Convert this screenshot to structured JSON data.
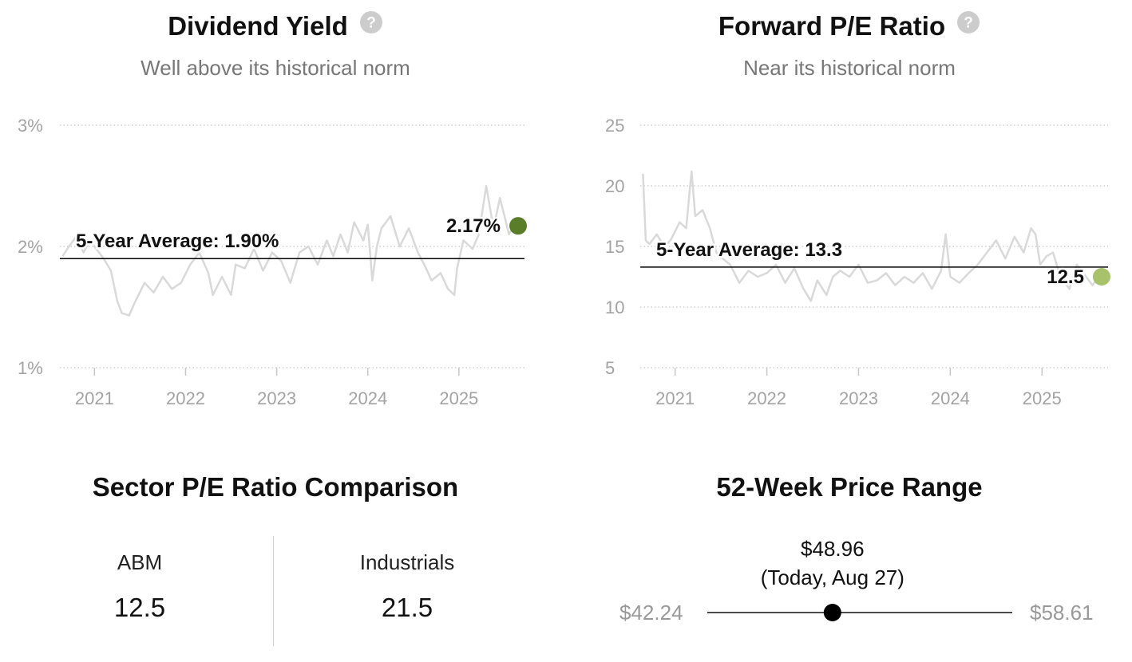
{
  "dividend_panel": {
    "title": "Dividend Yield",
    "subtitle": "Well above its historical norm",
    "help_icon": "question-circle-icon"
  },
  "pe_panel": {
    "title": "Forward P/E Ratio",
    "subtitle": "Near its historical norm",
    "help_icon": "question-circle-icon"
  },
  "chart_data": [
    {
      "type": "line",
      "title": "Dividend Yield",
      "subtitle": "Well above its historical norm",
      "xlabel": "",
      "ylabel": "",
      "x_tick_labels": [
        "2021",
        "2022",
        "2023",
        "2024",
        "2025"
      ],
      "y_tick_labels": [
        "1%",
        "2%",
        "3%"
      ],
      "y_ticks": [
        1,
        2,
        3
      ],
      "ylim": [
        1,
        3
      ],
      "xlim": [
        2020.62,
        2025.72
      ],
      "grid": "horizontal-dotted",
      "line_color": "#d9d9d9",
      "average": {
        "label": "5-Year Average: 1.90%",
        "value": 1.9,
        "color": "#000000"
      },
      "current": {
        "label": "2.17%",
        "value": 2.17,
        "x": 2025.65,
        "color": "#5a7d2a"
      },
      "series": [
        {
          "x": [
            2020.65,
            2020.72,
            2020.8,
            2020.88,
            2020.95,
            2021.02,
            2021.1,
            2021.18,
            2021.25,
            2021.3,
            2021.38,
            2021.45,
            2021.55,
            2021.65,
            2021.75,
            2021.85,
            2021.95,
            2022.05,
            2022.15,
            2022.25,
            2022.3,
            2022.4,
            2022.5,
            2022.55,
            2022.65,
            2022.75,
            2022.85,
            2022.95,
            2023.05,
            2023.15,
            2023.25,
            2023.35,
            2023.45,
            2023.55,
            2023.62,
            2023.7,
            2023.78,
            2023.85,
            2023.95,
            2024.0,
            2024.05,
            2024.1,
            2024.15,
            2024.25,
            2024.35,
            2024.45,
            2024.55,
            2024.62,
            2024.7,
            2024.8,
            2024.88,
            2024.95,
            2024.98,
            2025.05,
            2025.15,
            2025.22,
            2025.3,
            2025.38,
            2025.45,
            2025.55,
            2025.62
          ],
          "y": [
            1.92,
            2.0,
            2.08,
            1.95,
            2.05,
            1.98,
            1.9,
            1.8,
            1.55,
            1.45,
            1.43,
            1.55,
            1.7,
            1.62,
            1.75,
            1.65,
            1.7,
            1.85,
            1.95,
            1.78,
            1.6,
            1.75,
            1.6,
            1.85,
            1.82,
            1.98,
            1.8,
            1.95,
            1.88,
            1.7,
            1.95,
            2.0,
            1.85,
            2.05,
            1.92,
            2.1,
            1.95,
            2.2,
            2.05,
            2.18,
            1.72,
            2.0,
            2.15,
            2.25,
            2.0,
            2.15,
            1.95,
            1.85,
            1.72,
            1.78,
            1.65,
            1.6,
            1.82,
            2.05,
            1.98,
            2.1,
            2.5,
            2.15,
            2.4,
            2.1,
            2.2
          ]
        }
      ]
    },
    {
      "type": "line",
      "title": "Forward P/E Ratio",
      "subtitle": "Near its historical norm",
      "xlabel": "",
      "ylabel": "",
      "x_tick_labels": [
        "2021",
        "2022",
        "2023",
        "2024",
        "2025"
      ],
      "y_tick_labels": [
        "5",
        "10",
        "15",
        "20",
        "25"
      ],
      "y_ticks": [
        5,
        10,
        15,
        20,
        25
      ],
      "ylim": [
        5,
        25
      ],
      "xlim": [
        2020.62,
        2025.72
      ],
      "grid": "horizontal-dotted",
      "line_color": "#d9d9d9",
      "average": {
        "label": "5-Year Average: 13.3",
        "value": 13.3,
        "color": "#000000"
      },
      "current": {
        "label": "12.5",
        "value": 12.5,
        "x": 2025.65,
        "color": "#a7c26a"
      },
      "series": [
        {
          "x": [
            2020.65,
            2020.68,
            2020.72,
            2020.8,
            2020.88,
            2020.95,
            2021.05,
            2021.12,
            2021.18,
            2021.22,
            2021.3,
            2021.38,
            2021.45,
            2021.52,
            2021.6,
            2021.7,
            2021.8,
            2021.9,
            2022.0,
            2022.1,
            2022.2,
            2022.3,
            2022.4,
            2022.48,
            2022.55,
            2022.65,
            2022.72,
            2022.8,
            2022.9,
            2023.0,
            2023.1,
            2023.2,
            2023.3,
            2023.4,
            2023.5,
            2023.6,
            2023.7,
            2023.8,
            2023.9,
            2023.95,
            2024.0,
            2024.1,
            2024.2,
            2024.3,
            2024.4,
            2024.5,
            2024.6,
            2024.7,
            2024.8,
            2024.88,
            2024.93,
            2024.98,
            2025.05,
            2025.12,
            2025.2,
            2025.3,
            2025.38,
            2025.45,
            2025.55,
            2025.62
          ],
          "y": [
            21.0,
            15.5,
            15.2,
            16.0,
            15.0,
            15.5,
            17.0,
            16.5,
            21.2,
            17.5,
            18.0,
            16.5,
            14.5,
            14.0,
            13.5,
            12.0,
            13.0,
            12.5,
            12.8,
            13.5,
            12.0,
            13.2,
            11.5,
            10.5,
            12.2,
            11.0,
            12.5,
            13.0,
            12.5,
            13.5,
            12.0,
            12.2,
            12.8,
            11.8,
            12.5,
            12.0,
            12.8,
            11.5,
            13.0,
            16.0,
            12.5,
            12.0,
            12.8,
            13.5,
            14.5,
            15.5,
            14.0,
            15.8,
            14.5,
            16.5,
            16.0,
            13.5,
            14.2,
            14.5,
            12.5,
            11.5,
            13.5,
            12.8,
            11.8,
            12.5
          ]
        }
      ]
    },
    {
      "type": "table",
      "title": "Sector P/E Ratio Comparison",
      "columns": [
        "ABM",
        "Industrials"
      ],
      "values": [
        12.5,
        21.5
      ],
      "value_labels": [
        "12.5",
        "21.5"
      ]
    },
    {
      "type": "range",
      "title": "52-Week Price Range",
      "low": 42.24,
      "high": 58.61,
      "current": 48.96,
      "low_label": "$42.24",
      "high_label": "$58.61",
      "current_label": "$48.96",
      "current_note": "(Today, Aug 27)"
    }
  ]
}
